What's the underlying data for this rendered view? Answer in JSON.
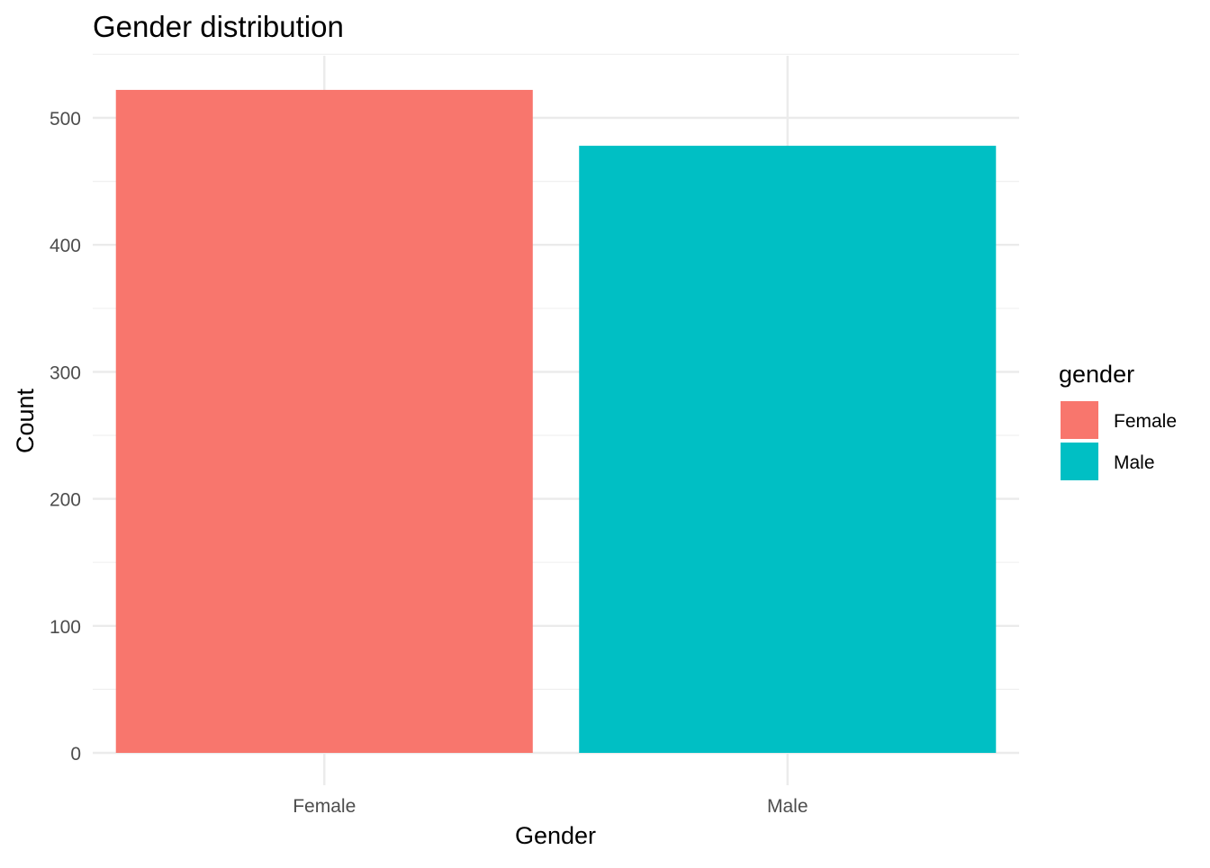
{
  "chart_data": {
    "type": "bar",
    "title": "Gender distribution",
    "xlabel": "Gender",
    "ylabel": "Count",
    "categories": [
      "Female",
      "Male"
    ],
    "values": [
      522,
      478
    ],
    "colors": [
      "#F8766D",
      "#00BFC4"
    ],
    "ylim": [
      0,
      550
    ],
    "yticks": [
      0,
      100,
      200,
      300,
      400,
      500
    ],
    "grid": true,
    "legend": {
      "title": "gender",
      "placement": "right",
      "items": [
        {
          "label": "Female",
          "color": "#F8766D"
        },
        {
          "label": "Male",
          "color": "#00BFC4"
        }
      ]
    }
  }
}
